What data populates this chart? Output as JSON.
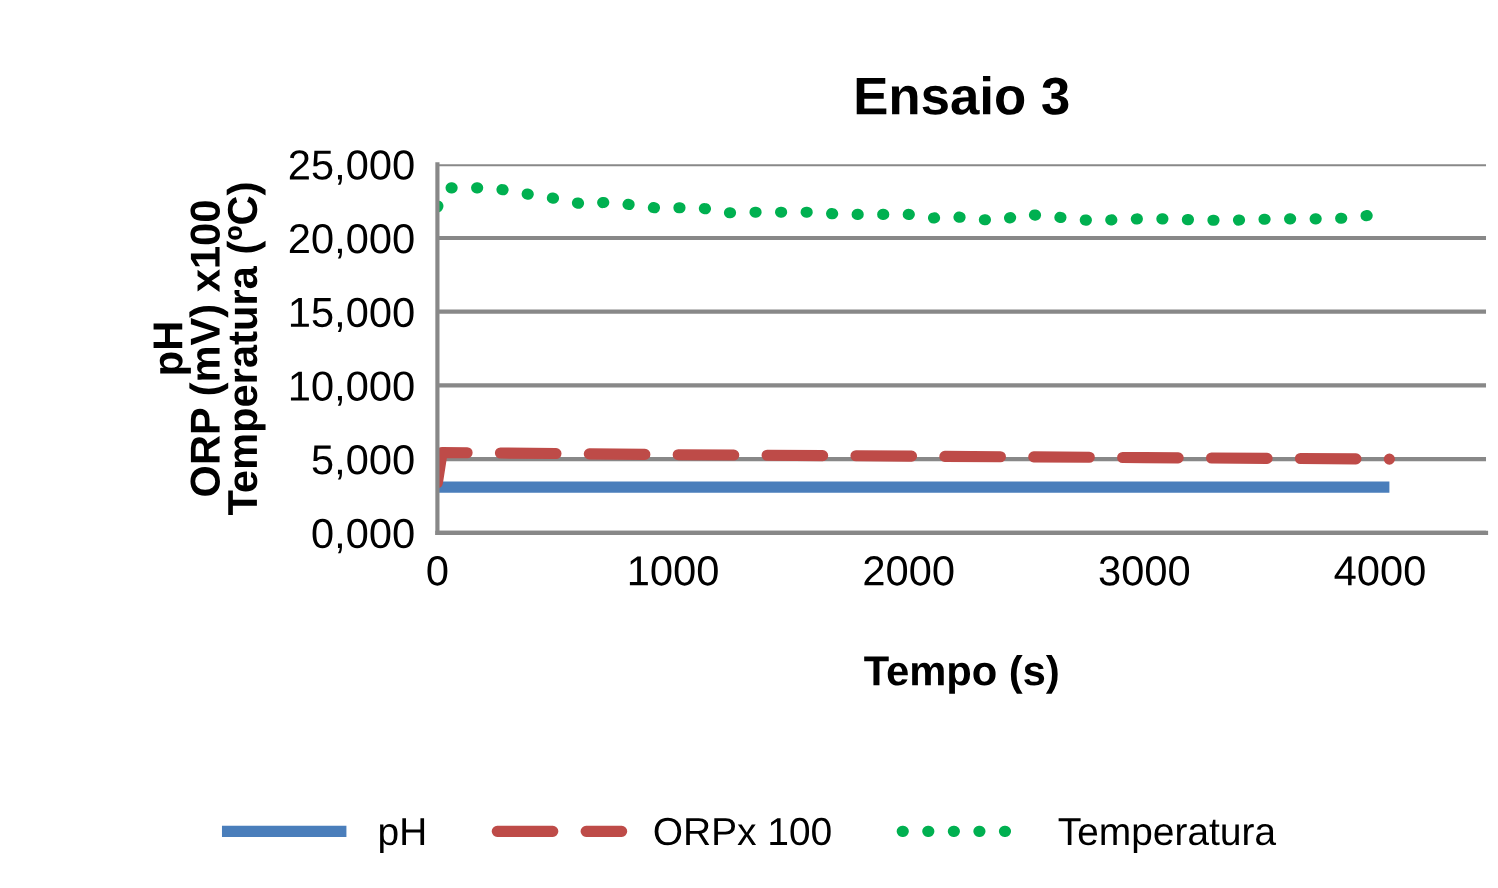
{
  "chart_data": {
    "type": "line",
    "title": "Ensaio 3",
    "xlabel": "Tempo (s)",
    "ylabel": "pH\nORP (mV) x100\nTemperatura (ºC)",
    "xlim": [
      0,
      4450
    ],
    "xticks": [
      0,
      1000,
      2000,
      3000,
      4000
    ],
    "ylim": [
      0,
      25000
    ],
    "yticks": [
      {
        "value": 0,
        "label": "0,000"
      },
      {
        "value": 5000,
        "label": "5,000"
      },
      {
        "value": 10000,
        "label": "10,000"
      },
      {
        "value": 15000,
        "label": "15,000"
      },
      {
        "value": 20000,
        "label": "20,000"
      },
      {
        "value": 25000,
        "label": "25,000"
      }
    ],
    "grid": "y",
    "legend": "bottom",
    "series": [
      {
        "name": "pH",
        "color": "#4a7ebb",
        "line_style": "solid",
        "x": [
          0,
          1000,
          2000,
          3000,
          4040
        ],
        "values": [
          3100,
          3100,
          3100,
          3100,
          3100
        ]
      },
      {
        "name": "ORPx 100",
        "color": "#be4b48",
        "line_style": "dashed",
        "x": [
          0,
          20,
          1000,
          2000,
          3000,
          4040
        ],
        "values": [
          3400,
          5450,
          5300,
          5200,
          5100,
          5000
        ]
      },
      {
        "name": "Temperatura",
        "color": "#00b050",
        "line_style": "dotted",
        "x": [
          0,
          40,
          138,
          236,
          334,
          432,
          530,
          628,
          726,
          824,
          922,
          1020,
          1118,
          1216,
          1314,
          1412,
          1510,
          1608,
          1706,
          1804,
          1902,
          2000,
          2098,
          2196,
          2294,
          2392,
          2490,
          2588,
          2686,
          2784,
          2882,
          2980,
          3078,
          3176,
          3274,
          3372,
          3470,
          3568,
          3666,
          3764,
          3862,
          3960
        ],
        "values": [
          22100,
          23400,
          23400,
          23400,
          23100,
          22850,
          22600,
          22250,
          22450,
          22250,
          22050,
          22050,
          22050,
          21700,
          21750,
          21750,
          21750,
          21750,
          21600,
          21600,
          21600,
          21600,
          21350,
          21450,
          21250,
          21200,
          21650,
          21450,
          21350,
          21150,
          21250,
          21300,
          21300,
          21250,
          21200,
          21200,
          21250,
          21300,
          21300,
          21300,
          21350,
          21550
        ]
      }
    ]
  }
}
